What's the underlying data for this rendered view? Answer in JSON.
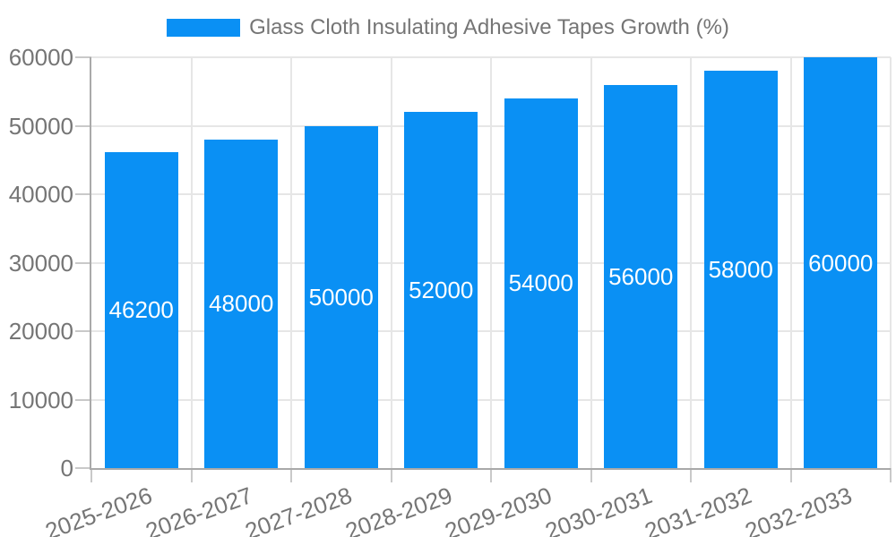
{
  "chart_data": {
    "type": "bar",
    "title": "Glass Cloth Insulating Adhesive Tapes Growth (%)",
    "legend": {
      "position": "top",
      "entries": [
        "Glass Cloth Insulating Adhesive Tapes Growth (%)"
      ]
    },
    "categories": [
      "2025-2026",
      "2026-2027",
      "2027-2028",
      "2028-2029",
      "2029-2030",
      "2030-2031",
      "2031-2032",
      "2032-2033"
    ],
    "values": [
      46200,
      48000,
      50000,
      52000,
      54000,
      56000,
      58000,
      60000
    ],
    "bar_value_labels": [
      "46200",
      "48000",
      "50000",
      "52000",
      "54000",
      "56000",
      "58000",
      "60000"
    ],
    "xlabel": "",
    "ylabel": "",
    "ylim": [
      0,
      60000
    ],
    "yticks": [
      0,
      10000,
      20000,
      30000,
      40000,
      50000,
      60000
    ],
    "ytick_labels": [
      "0",
      "10000",
      "20000",
      "30000",
      "40000",
      "50000",
      "60000"
    ],
    "grid": true,
    "x_label_rotation_deg": -20
  },
  "colors": {
    "bar": "#0a90f4",
    "bar_label_text": "#ffffff",
    "axis_text": "#757575",
    "legend_text": "#757575",
    "axis_line": "#a9a9a9",
    "gridline": "#e6e6e6",
    "tick_mark": "#c9c9c9",
    "background": "#ffffff"
  }
}
